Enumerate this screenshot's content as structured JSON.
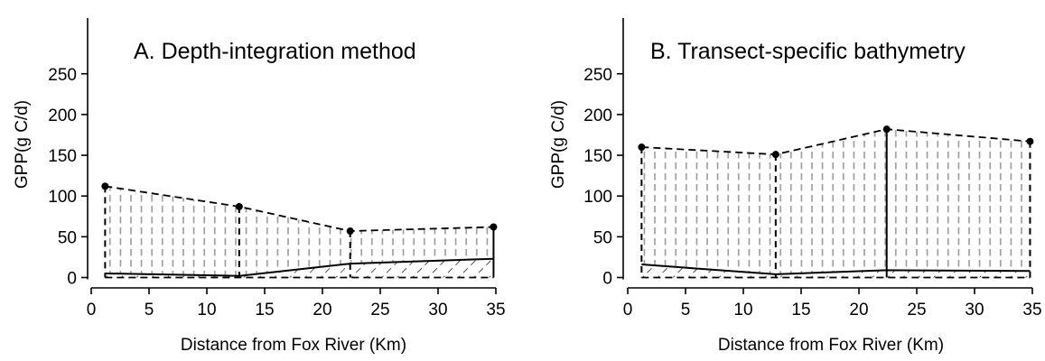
{
  "chart_data": [
    {
      "type": "area",
      "title": "A. Depth-integration method",
      "xlabel": "Distance from Fox River (Km)",
      "ylabel": "GPP(g C/d)",
      "xlim": [
        0,
        35
      ],
      "ylim": [
        0,
        250
      ],
      "xticks": [
        0,
        5,
        10,
        15,
        20,
        25,
        30,
        35
      ],
      "yticks": [
        0,
        50,
        100,
        150,
        200,
        250
      ],
      "grid": false,
      "x": [
        1.2,
        12.8,
        22.4,
        34.8
      ],
      "series": [
        {
          "values": [
            112,
            87,
            57,
            62
          ]
        },
        {
          "values": [
            5,
            2,
            17,
            23
          ]
        }
      ],
      "vertical_line_styles": [
        "dashed",
        "dashed",
        "dashed",
        "solid"
      ]
    },
    {
      "type": "area",
      "title": "B. Transect-specific bathymetry",
      "xlabel": "Distance from Fox River (Km)",
      "ylabel": "GPP(g C/d)",
      "xlim": [
        0,
        35
      ],
      "ylim": [
        0,
        250
      ],
      "xticks": [
        0,
        5,
        10,
        15,
        20,
        25,
        30,
        35
      ],
      "yticks": [
        0,
        50,
        100,
        150,
        200,
        250
      ],
      "grid": false,
      "x": [
        1.2,
        12.8,
        22.4,
        34.8
      ],
      "series": [
        {
          "values": [
            160,
            151,
            182,
            167
          ]
        },
        {
          "values": [
            16,
            4,
            9,
            8
          ]
        }
      ],
      "vertical_line_styles": [
        "dashed",
        "dashed",
        "solid",
        "dashed"
      ]
    }
  ]
}
